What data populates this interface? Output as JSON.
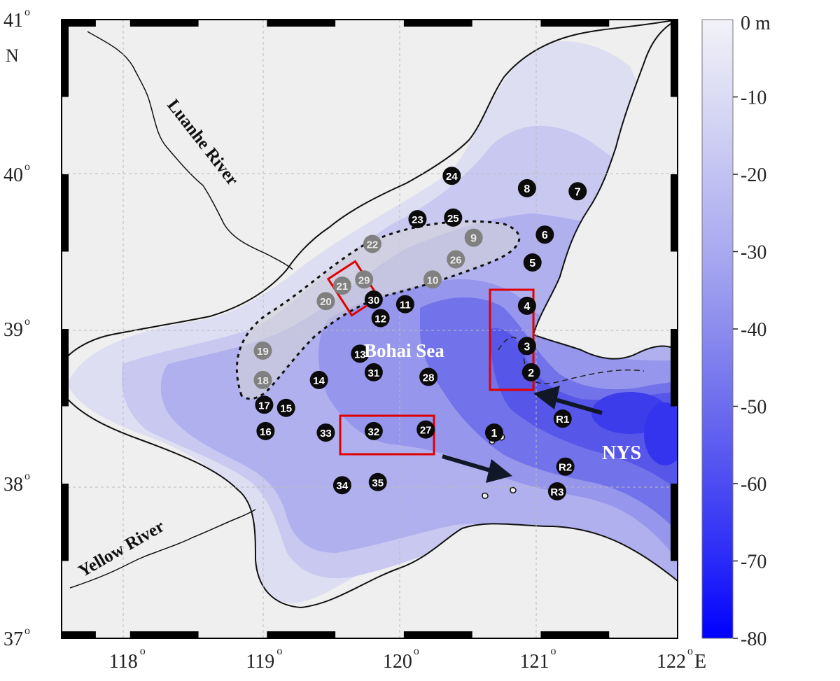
{
  "map": {
    "sea_label": "Bohai Sea",
    "nys_label": "NYS",
    "rivers": [
      {
        "id": "luanhe",
        "label": "Luanhe River"
      },
      {
        "id": "yellow",
        "label": "Yellow River"
      }
    ],
    "lat_ticks": [
      {
        "deg": "37",
        "sup": "o",
        "suffix": ""
      },
      {
        "deg": "38",
        "sup": "o",
        "suffix": ""
      },
      {
        "deg": "39",
        "sup": "o",
        "suffix": ""
      },
      {
        "deg": "40",
        "sup": "o",
        "suffix": ""
      },
      {
        "deg": "41",
        "sup": "o",
        "suffix": ""
      }
    ],
    "lat_axis_letter": "N",
    "lon_ticks": [
      {
        "deg": "118",
        "sup": "o",
        "suffix": ""
      },
      {
        "deg": "119",
        "sup": "o",
        "suffix": ""
      },
      {
        "deg": "120",
        "sup": "o",
        "suffix": ""
      },
      {
        "deg": "121",
        "sup": "o",
        "suffix": ""
      },
      {
        "deg": "122",
        "sup": "o",
        "suffix": "E"
      }
    ],
    "lon_range": [
      117.5,
      122.0
    ],
    "lat_range": [
      37.0,
      41.0
    ],
    "stations_black": [
      {
        "label": "1",
        "lon": 120.66,
        "lat": 38.33
      },
      {
        "label": "2",
        "lon": 120.93,
        "lat": 38.72
      },
      {
        "label": "3",
        "lon": 120.9,
        "lat": 38.89
      },
      {
        "label": "4",
        "lon": 120.9,
        "lat": 39.15
      },
      {
        "label": "5",
        "lon": 120.94,
        "lat": 39.43
      },
      {
        "label": "6",
        "lon": 121.03,
        "lat": 39.61
      },
      {
        "label": "7",
        "lon": 121.27,
        "lat": 39.89
      },
      {
        "label": "8",
        "lon": 120.9,
        "lat": 39.91
      },
      {
        "label": "11",
        "lon": 120.01,
        "lat": 39.16
      },
      {
        "label": "12",
        "lon": 119.83,
        "lat": 39.07
      },
      {
        "label": "13",
        "lon": 119.68,
        "lat": 38.84
      },
      {
        "label": "14",
        "lon": 119.38,
        "lat": 38.67
      },
      {
        "label": "15",
        "lon": 119.14,
        "lat": 38.49
      },
      {
        "label": "16",
        "lon": 118.99,
        "lat": 38.34
      },
      {
        "label": "17",
        "lon": 118.98,
        "lat": 38.51
      },
      {
        "label": "23",
        "lon": 120.1,
        "lat": 39.71
      },
      {
        "label": "24",
        "lon": 120.35,
        "lat": 39.99
      },
      {
        "label": "25",
        "lon": 120.36,
        "lat": 39.72
      },
      {
        "label": "27",
        "lon": 120.16,
        "lat": 38.35
      },
      {
        "label": "28",
        "lon": 120.18,
        "lat": 38.69
      },
      {
        "label": "30",
        "lon": 119.78,
        "lat": 39.19
      },
      {
        "label": "31",
        "lon": 119.78,
        "lat": 38.72
      },
      {
        "label": "32",
        "lon": 119.78,
        "lat": 38.34
      },
      {
        "label": "33",
        "lon": 119.43,
        "lat": 38.33
      },
      {
        "label": "34",
        "lon": 119.55,
        "lat": 37.99
      },
      {
        "label": "35",
        "lon": 119.81,
        "lat": 38.01
      },
      {
        "label": "R1",
        "lon": 121.16,
        "lat": 38.42
      },
      {
        "label": "R2",
        "lon": 121.18,
        "lat": 38.11
      },
      {
        "label": "R3",
        "lon": 121.12,
        "lat": 37.95
      }
    ],
    "stations_grey": [
      {
        "label": "9",
        "lon": 120.51,
        "lat": 39.59
      },
      {
        "label": "10",
        "lon": 120.21,
        "lat": 39.32
      },
      {
        "label": "18",
        "lon": 118.97,
        "lat": 38.67
      },
      {
        "label": "19",
        "lon": 118.97,
        "lat": 38.86
      },
      {
        "label": "20",
        "lon": 119.43,
        "lat": 39.18
      },
      {
        "label": "21",
        "lon": 119.55,
        "lat": 39.28
      },
      {
        "label": "22",
        "lon": 119.77,
        "lat": 39.55
      },
      {
        "label": "26",
        "lon": 120.38,
        "lat": 39.45
      },
      {
        "label": "29",
        "lon": 119.71,
        "lat": 39.32
      }
    ]
  },
  "colorbar": {
    "title": "0 m",
    "ticks": [
      "-10",
      "-20",
      "-30",
      "-40",
      "-50",
      "-60",
      "-70",
      "-80"
    ],
    "min": -80,
    "max": 0,
    "color_top": "#f2f2f8",
    "color_bottom": "#0000ff"
  }
}
